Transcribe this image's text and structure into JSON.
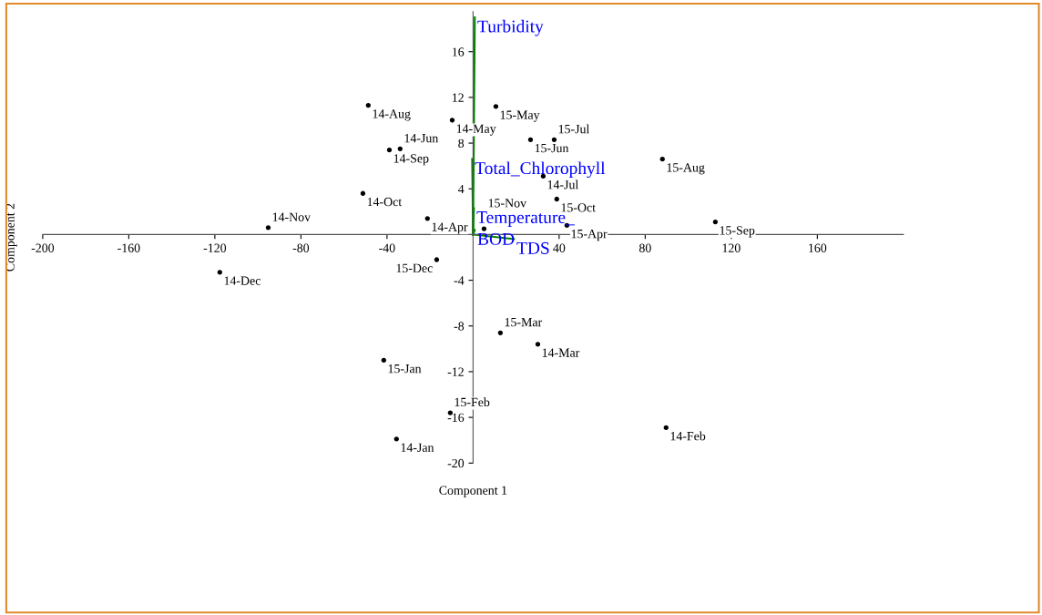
{
  "chart_data": {
    "type": "scatter",
    "xlabel": "Component 1",
    "ylabel": "Component 2",
    "xlim": [
      -200,
      200
    ],
    "ylim": [
      -20,
      19.5
    ],
    "xticks": [
      -200,
      -160,
      -120,
      -80,
      -40,
      40,
      80,
      120,
      160
    ],
    "yticks": [
      -20,
      -16,
      -12,
      -8,
      -4,
      4,
      8,
      12,
      16
    ],
    "grid": false,
    "legend": false,
    "marker": "circle",
    "series": [
      {
        "color": "#000000",
        "x": [
          -48.7,
          -9.7,
          10.6,
          26.7,
          37.7,
          -38.9,
          -33.9,
          88.0,
          32.6,
          -51.2,
          38.9,
          43.6,
          -21.2,
          -95.2,
          112.6,
          5.1,
          -117.7,
          -16.9,
          12.7,
          30.1,
          -41.5,
          -10.6,
          -35.6,
          89.7
        ],
        "values": [
          11.3,
          10.0,
          11.2,
          8.3,
          8.3,
          7.4,
          7.5,
          6.6,
          5.1,
          3.6,
          3.1,
          0.8,
          1.4,
          0.6,
          1.1,
          0.5,
          -3.3,
          -2.2,
          -8.6,
          -9.6,
          -11.0,
          -15.6,
          -17.9,
          -16.9
        ],
        "value_labels": [
          "14-Aug",
          "14-May",
          "15-May",
          "15-Jun",
          "15-Jul",
          "14-Sep",
          "14-Jun",
          "15-Aug",
          "14-Jul",
          "14-Oct",
          "15-Oct",
          "15-Apr",
          "14-Apr",
          "14-Nov",
          "15-Sep",
          "15-Nov",
          "14-Dec",
          "15-Dec",
          "15-Mar",
          "14-Mar",
          "15-Jan",
          "15-Feb",
          "14-Jan",
          "14-Feb"
        ]
      },
      {
        "type": "line",
        "marker": "none",
        "name": "Turbidity",
        "color": "#008000",
        "x": [
          0,
          0.8
        ],
        "values": [
          0,
          19.0
        ]
      },
      {
        "type": "line",
        "marker": "none",
        "name": "Total_Chlorophyll",
        "color": "#008000",
        "x": [
          0,
          -0.4
        ],
        "values": [
          0,
          6.6
        ]
      },
      {
        "type": "line",
        "marker": "none",
        "name": "Temperature_",
        "color": "#008000",
        "x": [
          0,
          0.4
        ],
        "values": [
          0,
          2.3
        ]
      },
      {
        "type": "line",
        "marker": "none",
        "name": "BOD",
        "color": "#008000",
        "x": [
          0,
          0.8
        ],
        "values": [
          0,
          0.4
        ]
      },
      {
        "type": "line",
        "marker": "none",
        "name": "TDS",
        "color": "#008000",
        "x": [
          0,
          19
        ],
        "values": [
          0,
          -0.4
        ]
      }
    ]
  }
}
